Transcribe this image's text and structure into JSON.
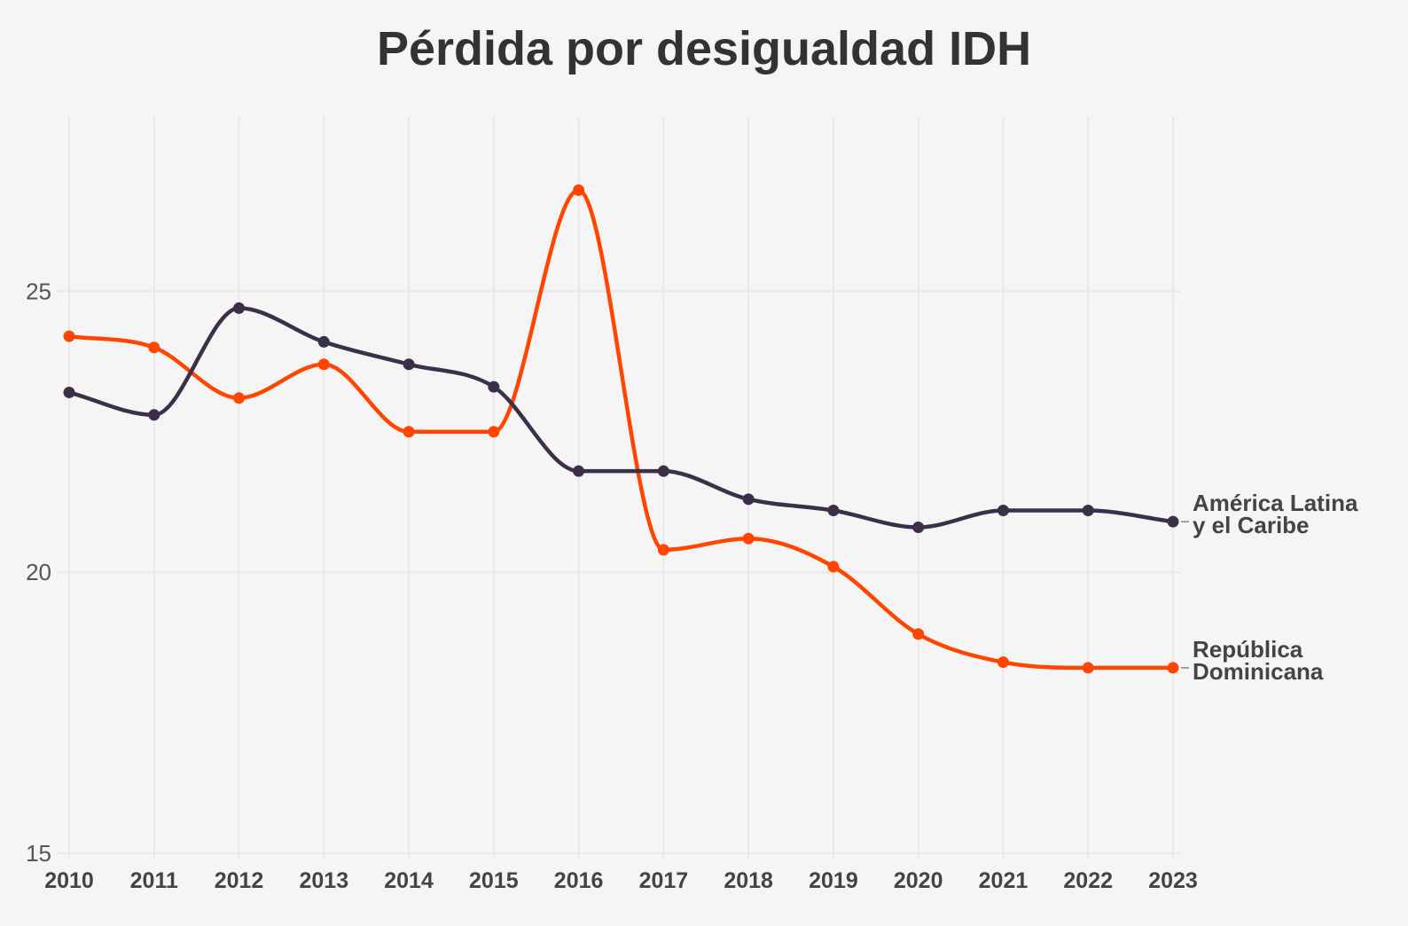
{
  "chart_data": {
    "type": "line",
    "title": "Pérdida por desigualdad IDH",
    "xlabel": "",
    "ylabel": "",
    "x": [
      2010,
      2011,
      2012,
      2013,
      2014,
      2015,
      2016,
      2017,
      2018,
      2019,
      2020,
      2021,
      2022,
      2023
    ],
    "x_tick_labels": [
      "2010",
      "2011",
      "2012",
      "2013",
      "2014",
      "2015",
      "2016",
      "2017",
      "2018",
      "2019",
      "2020",
      "2021",
      "2022",
      "2023"
    ],
    "ylim": [
      15,
      28
    ],
    "y_ticks": [
      15,
      20,
      25
    ],
    "y_tick_labels": [
      "15",
      "20",
      "25"
    ],
    "grid": true,
    "legend": "direct labels at line ends",
    "series": [
      {
        "name": "América Latina y el Caribe",
        "label_lines": [
          "América Latina",
          "y el Caribe"
        ],
        "color": "#3b2f4a",
        "values": [
          23.2,
          22.8,
          24.7,
          24.1,
          23.7,
          23.3,
          21.8,
          21.8,
          21.3,
          21.1,
          20.8,
          21.1,
          21.1,
          20.9
        ]
      },
      {
        "name": "República Dominicana",
        "label_lines": [
          "República",
          "Dominicana"
        ],
        "color": "#ff4500",
        "values": [
          24.2,
          24.0,
          23.1,
          23.7,
          22.5,
          22.5,
          26.8,
          20.4,
          20.6,
          20.1,
          18.9,
          18.4,
          18.3,
          18.3
        ]
      }
    ]
  }
}
